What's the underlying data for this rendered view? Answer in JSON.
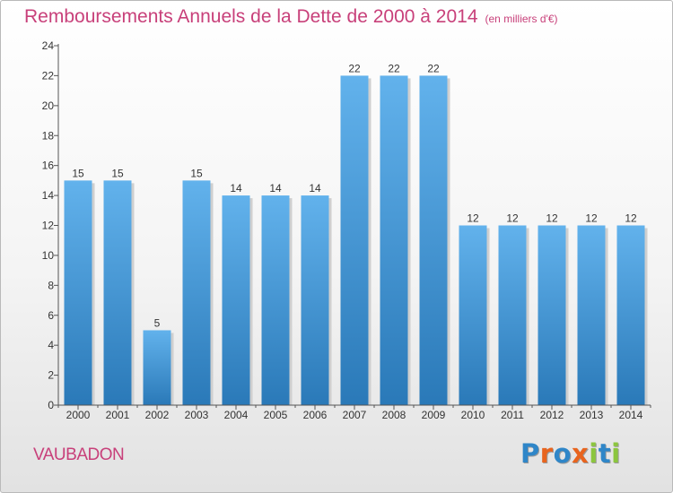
{
  "title": "Remboursements Annuels de la Dette de 2000 à 2014",
  "subtitle": "(en milliers d'€)",
  "place": "VAUBADON",
  "logo": {
    "text": "Proxiti",
    "letters": [
      {
        "ch": "P",
        "color": "#2f86c8"
      },
      {
        "ch": "r",
        "color": "#e8641e"
      },
      {
        "ch": "o",
        "color": "#2f86c8"
      },
      {
        "ch": "x",
        "color": "#e8641e"
      },
      {
        "ch": "i",
        "color": "#8cc63e"
      },
      {
        "ch": "t",
        "color": "#2f86c8"
      },
      {
        "ch": "i",
        "color": "#8cc63e"
      }
    ]
  },
  "colors": {
    "title": "#c8407a",
    "bar_top": "#62b2ec",
    "bar_bottom": "#2a79b8",
    "axis": "#555555"
  },
  "chart_data": {
    "type": "bar",
    "title": "Remboursements Annuels de la Dette de 2000 à 2014",
    "subtitle": "(en milliers d'€)",
    "xlabel": "",
    "ylabel": "",
    "categories": [
      "2000",
      "2001",
      "2002",
      "2003",
      "2004",
      "2005",
      "2006",
      "2007",
      "2008",
      "2009",
      "2010",
      "2011",
      "2012",
      "2013",
      "2014"
    ],
    "values": [
      15,
      15,
      5,
      15,
      14,
      14,
      14,
      22,
      22,
      22,
      12,
      12,
      12,
      12,
      12
    ],
    "data_labels": [
      "15",
      "15",
      "5",
      "15",
      "14",
      "14",
      "14",
      "22",
      "22",
      "22",
      "12",
      "12",
      "12",
      "12",
      "12"
    ],
    "ylim": [
      0,
      24
    ],
    "yticks": [
      0,
      2,
      4,
      6,
      8,
      10,
      12,
      14,
      16,
      18,
      20,
      22,
      24
    ],
    "grid": false,
    "legend": "none"
  }
}
